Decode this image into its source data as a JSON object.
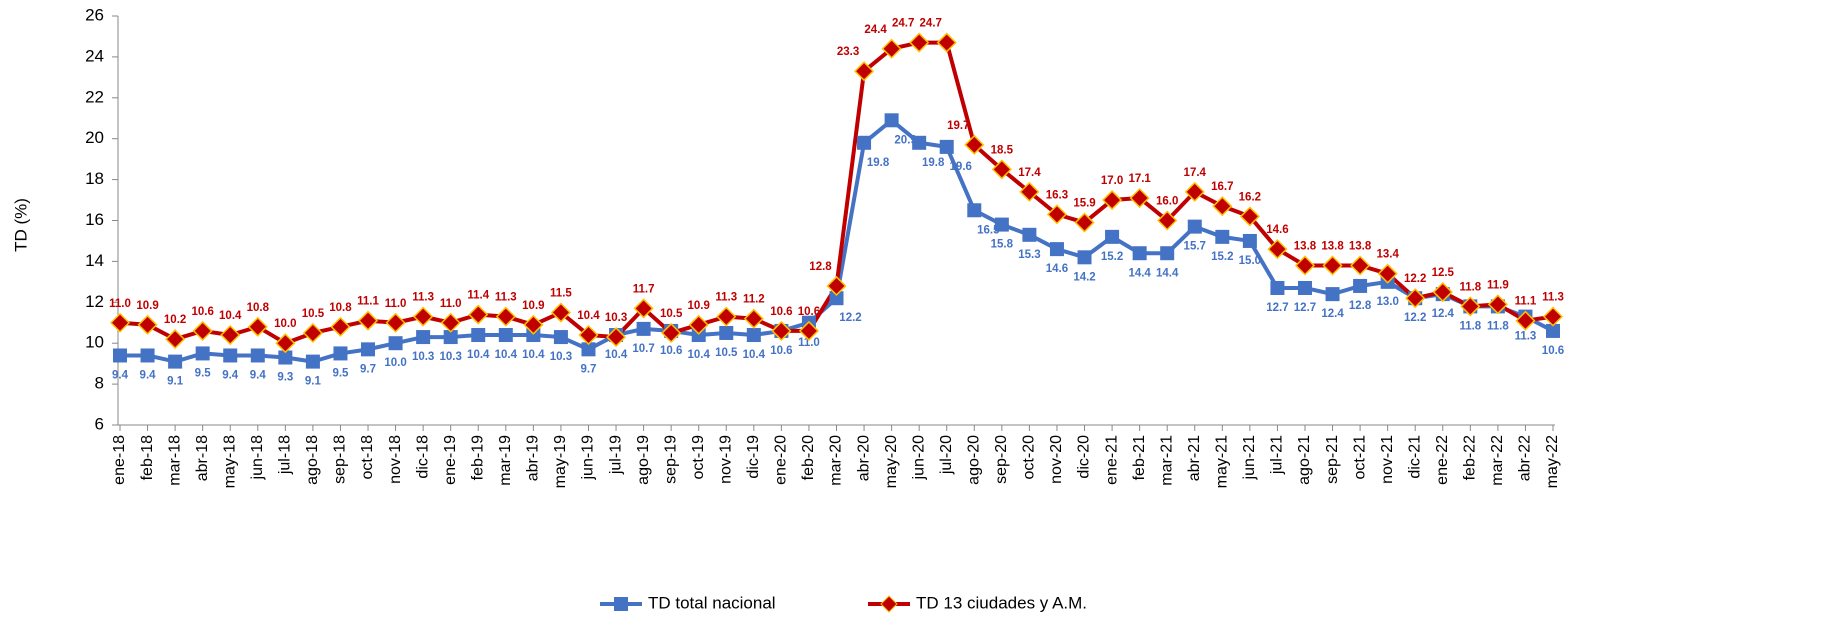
{
  "chart_data": {
    "type": "line",
    "y_label": "TD (%)",
    "categories": [
      "ene-18",
      "feb-18",
      "mar-18",
      "abr-18",
      "may-18",
      "jun-18",
      "jul-18",
      "ago-18",
      "sep-18",
      "oct-18",
      "nov-18",
      "dic-18",
      "ene-19",
      "feb-19",
      "mar-19",
      "abr-19",
      "may-19",
      "jun-19",
      "jul-19",
      "ago-19",
      "sep-19",
      "oct-19",
      "nov-19",
      "dic-19",
      "ene-20",
      "feb-20",
      "mar-20",
      "abr-20",
      "may-20",
      "jun-20",
      "jul-20",
      "ago-20",
      "sep-20",
      "oct-20",
      "nov-20",
      "dic-20",
      "ene-21",
      "feb-21",
      "mar-21",
      "abr-21",
      "may-21",
      "jun-21",
      "jul-21",
      "ago-21",
      "sep-21",
      "oct-21",
      "nov-21",
      "dic-21",
      "ene-22",
      "feb-22",
      "mar-22",
      "abr-22",
      "may-22"
    ],
    "series": [
      {
        "name": "TD total nacional",
        "color": "#4472c4",
        "marker": "square",
        "values": [
          9.4,
          9.4,
          9.1,
          9.5,
          9.4,
          9.4,
          9.3,
          9.1,
          9.5,
          9.7,
          10.0,
          10.3,
          10.3,
          10.4,
          10.4,
          10.4,
          10.3,
          9.7,
          10.4,
          10.7,
          10.6,
          10.4,
          10.5,
          10.4,
          10.6,
          11.0,
          12.2,
          19.8,
          20.9,
          19.8,
          19.6,
          16.5,
          15.8,
          15.3,
          14.6,
          14.2,
          15.2,
          14.4,
          14.4,
          15.7,
          15.2,
          15.0,
          12.7,
          12.7,
          12.4,
          12.8,
          13.0,
          12.2,
          12.4,
          11.8,
          11.8,
          11.3,
          10.6
        ],
        "value_labels": [
          "9.4",
          "9.4",
          "9.1",
          "9.5",
          "9.4",
          "9.4",
          "9.3",
          "9.1",
          "9.5",
          "9.7",
          "10.0",
          "10.3",
          "10.3",
          "10.4",
          "10.4",
          "10.4",
          "10.3",
          "9.7",
          "10.4",
          "10.7",
          "10.6",
          "10.4",
          "10.5",
          "10.4",
          "10.6",
          "11.0",
          "12.2",
          "19.8",
          "20.9",
          "19.8",
          "19.6",
          "16.5",
          "15.8",
          "15.3",
          "14.6",
          "14.2",
          "15.2",
          "14.4",
          "14.4",
          "15.7",
          "15.2",
          "15.0",
          "12.7",
          "12.7",
          "12.4",
          "12.8",
          "13.0",
          "12.2",
          "12.4",
          "11.8",
          "11.8",
          "11.3",
          "10.6"
        ]
      },
      {
        "name": "TD 13 ciudades y A.M.",
        "color": "#c00000",
        "marker": "diamond",
        "values": [
          11.0,
          10.9,
          10.2,
          10.6,
          10.4,
          10.8,
          10.0,
          10.5,
          10.8,
          11.1,
          11.0,
          11.3,
          11.0,
          11.4,
          11.3,
          10.9,
          11.5,
          10.4,
          10.3,
          11.7,
          10.5,
          10.9,
          11.3,
          11.2,
          10.6,
          10.6,
          12.8,
          23.3,
          24.4,
          24.7,
          24.7,
          19.7,
          18.5,
          17.4,
          16.3,
          15.9,
          17.0,
          17.1,
          16.0,
          17.4,
          16.7,
          16.2,
          14.6,
          13.8,
          13.8,
          13.8,
          13.4,
          12.2,
          12.5,
          11.8,
          11.9,
          11.1,
          11.3
        ],
        "value_labels": [
          "11.0",
          "10.9",
          "10.2",
          "10.6",
          "10.4",
          "10.8",
          "10.0",
          "10.5",
          "10.8",
          "11.1",
          "11.0",
          "11.3",
          "11.0",
          "11.4",
          "11.3",
          "10.9",
          "11.5",
          "10.4",
          "10.3",
          "11.7",
          "10.5",
          "10.9",
          "11.3",
          "11.2",
          "10.6",
          "10.6",
          "12.8",
          "23.3",
          "24.4",
          "24.7",
          "24.7",
          "19.7",
          "18.5",
          "17.4",
          "16.3",
          "15.9",
          "17.0",
          "17.1",
          "16.0",
          "17.4",
          "16.7",
          "16.2",
          "14.6",
          "13.8",
          "13.8",
          "13.8",
          "13.4",
          "12.2",
          "12.5",
          "11.8",
          "11.9",
          "11.1",
          "11.3"
        ]
      }
    ],
    "ylim": [
      6,
      26
    ],
    "yticks": [
      6,
      8,
      10,
      12,
      14,
      16,
      18,
      20,
      22,
      24,
      26
    ],
    "legend": "bottom"
  }
}
